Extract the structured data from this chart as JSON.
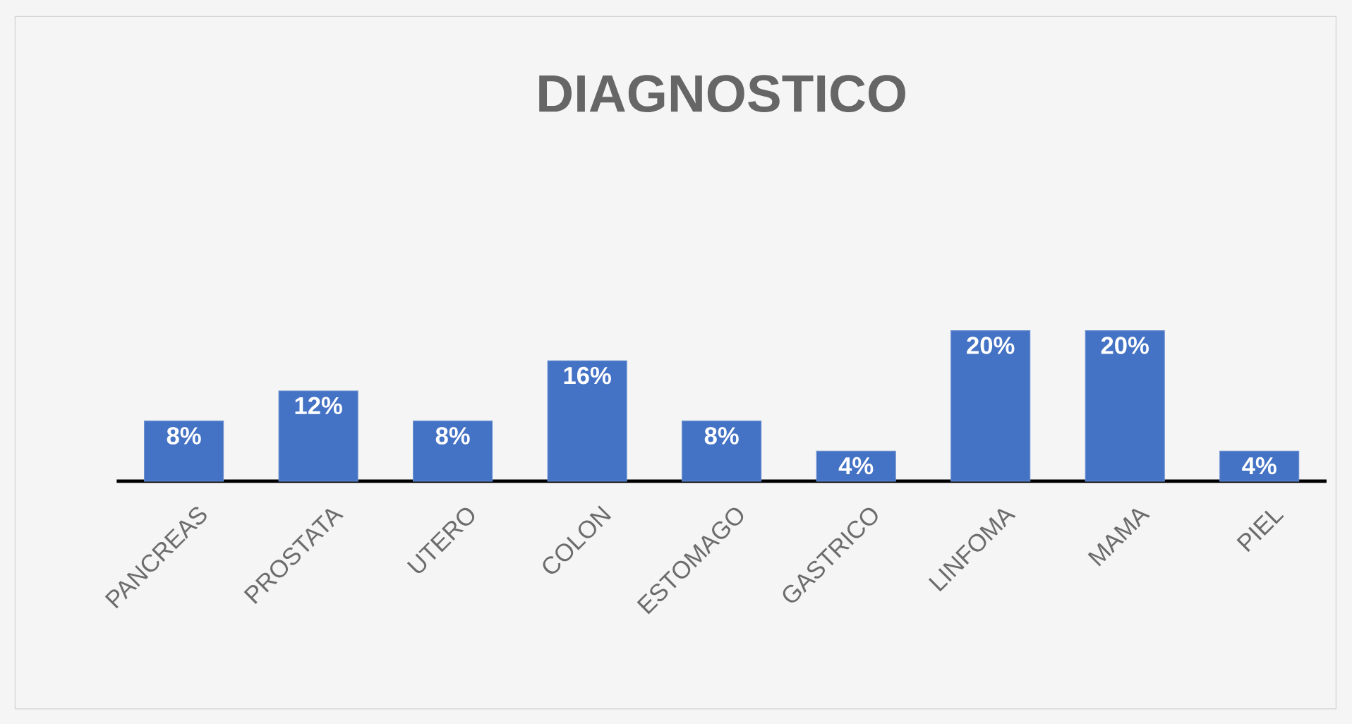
{
  "chart_data": {
    "type": "bar",
    "title": "DIAGNOSTICO",
    "categories": [
      "PANCREAS",
      "PROSTATA",
      "UTERO",
      "COLON",
      "ESTOMAGO",
      "GASTRICO",
      "LINFOMA",
      "MAMA",
      "PIEL"
    ],
    "values": [
      8,
      12,
      8,
      16,
      8,
      4,
      20,
      20,
      4
    ],
    "value_labels": [
      "8%",
      "12%",
      "8%",
      "16%",
      "8%",
      "4%",
      "20%",
      "20%",
      "4%"
    ],
    "color": "#4472c4",
    "tick_labels": "x"
  }
}
